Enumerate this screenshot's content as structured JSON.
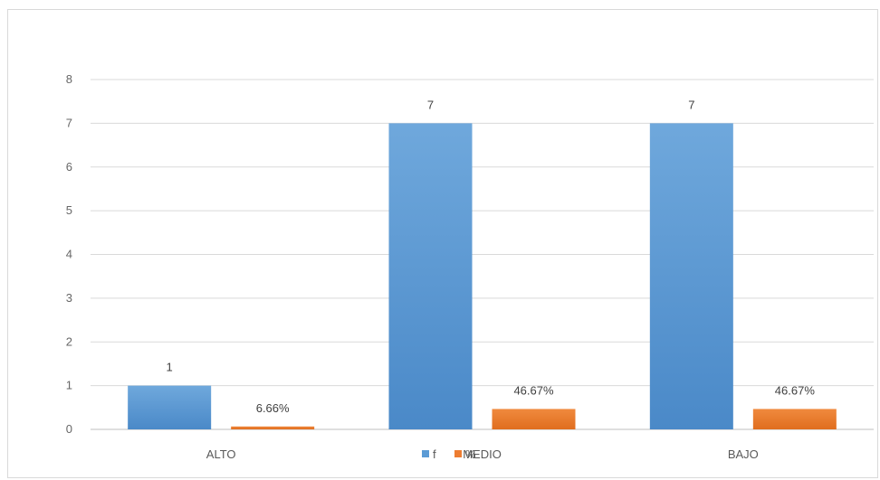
{
  "chart_data": {
    "type": "bar",
    "categories": [
      "ALTO",
      "MEDIO",
      "BAJO"
    ],
    "series": [
      {
        "name": "f",
        "values": [
          1,
          7,
          7
        ],
        "labels": [
          "1",
          "7",
          "7"
        ],
        "color": "#5b9bd5"
      },
      {
        "name": "%",
        "values": [
          0.0666,
          0.4667,
          0.4667
        ],
        "labels": [
          "6.66%",
          "46.67%",
          "46.67%"
        ],
        "color": "#ed7d31"
      }
    ],
    "ylim": [
      0,
      8
    ],
    "yticks": [
      0,
      1,
      2,
      3,
      4,
      5,
      6,
      7,
      8
    ],
    "grid": true,
    "legend": "bottom",
    "title": "",
    "xlabel": "",
    "ylabel": ""
  }
}
